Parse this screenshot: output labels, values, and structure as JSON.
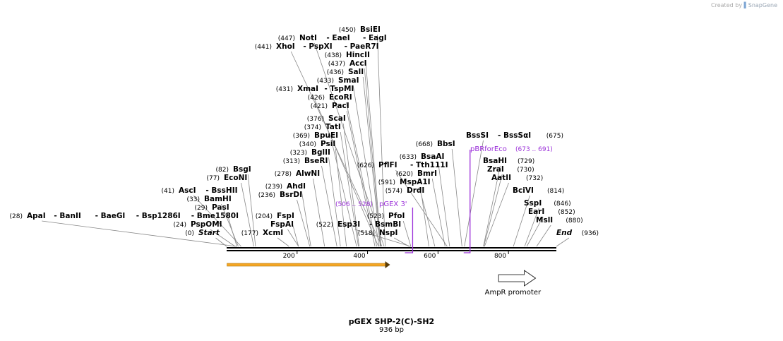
{
  "credit": {
    "prefix": "Created by",
    "brand": "SnapGene"
  },
  "map": {
    "name": "pGEX SHP-2(C)-SH2",
    "length_label": "936 bp",
    "total_bp": 936
  },
  "colors": {
    "primer": "#9b30d9",
    "feature": "#f5a623",
    "line": "#000000",
    "leader": "#888888"
  },
  "sites": [
    {
      "pos": 450,
      "label": "(450)",
      "names": [
        "BsiEI"
      ]
    },
    {
      "pos": 447,
      "label": "(447)",
      "names": [
        "NotI",
        "- EaeI",
        "- EagI"
      ]
    },
    {
      "pos": 441,
      "label": "(441)",
      "names": [
        "XhoI",
        "- PspXI",
        "- PaeR7I"
      ]
    },
    {
      "pos": 438,
      "label": "(438)",
      "names": [
        "HincII"
      ]
    },
    {
      "pos": 437,
      "label": "(437)",
      "names": [
        "AccI"
      ]
    },
    {
      "pos": 436,
      "label": "(436)",
      "names": [
        "SalI"
      ]
    },
    {
      "pos": 433,
      "label": "(433)",
      "names": [
        "SmaI"
      ]
    },
    {
      "pos": 431,
      "label": "(431)",
      "names": [
        "XmaI",
        "- TspMI"
      ]
    },
    {
      "pos": 426,
      "label": "(426)",
      "names": [
        "EcoRI"
      ]
    },
    {
      "pos": 421,
      "label": "(421)",
      "names": [
        "PacI"
      ]
    },
    {
      "pos": 376,
      "label": "(376)",
      "names": [
        "ScaI"
      ]
    },
    {
      "pos": 374,
      "label": "(374)",
      "names": [
        "TatI"
      ]
    },
    {
      "pos": 369,
      "label": "(369)",
      "names": [
        "BpuEI"
      ]
    },
    {
      "pos": 340,
      "label": "(340)",
      "names": [
        "PsiI"
      ]
    },
    {
      "pos": 323,
      "label": "(323)",
      "names": [
        "BglII"
      ]
    },
    {
      "pos": 313,
      "label": "(313)",
      "names": [
        "BseRI"
      ]
    },
    {
      "pos": 278,
      "label": "(278)",
      "names": [
        "AlwNI"
      ]
    },
    {
      "pos": 239,
      "label": "(239)",
      "names": [
        "AhdI"
      ]
    },
    {
      "pos": 236,
      "label": "(236)",
      "names": [
        "BsrDI"
      ]
    },
    {
      "pos": 204,
      "label": "(204)",
      "names": [
        "FspI"
      ]
    },
    {
      "pos": 204,
      "label": "",
      "names": [
        "FspAI"
      ]
    },
    {
      "pos": 177,
      "label": "(177)",
      "names": [
        "XcmI"
      ]
    },
    {
      "pos": 82,
      "label": "(82)",
      "names": [
        "BsgI"
      ]
    },
    {
      "pos": 77,
      "label": "(77)",
      "names": [
        "EcoNI"
      ]
    },
    {
      "pos": 41,
      "label": "(41)",
      "names": [
        "AscI",
        "- BssHII"
      ]
    },
    {
      "pos": 33,
      "label": "(33)",
      "names": [
        "BamHI"
      ]
    },
    {
      "pos": 29,
      "label": "(29)",
      "names": [
        "PasI"
      ]
    },
    {
      "pos": 28,
      "label": "(28)",
      "names": [
        "ApaI",
        "- BanII",
        "- BaeGI",
        "- Bsp1286I",
        "- Bme1580I"
      ]
    },
    {
      "pos": 24,
      "label": "(24)",
      "names": [
        "PspOMI"
      ]
    },
    {
      "pos": 0,
      "label": "(0)",
      "names": [
        "Start"
      ],
      "italic": true
    },
    {
      "pos": 522,
      "label": "(522)",
      "names": [
        "Esp3I",
        "- BsmBI"
      ]
    },
    {
      "pos": 518,
      "label": "(518)",
      "names": [
        "NspI"
      ]
    },
    {
      "pos": 523,
      "label": "(523)",
      "names": [
        "PfoI"
      ]
    },
    {
      "pos": 574,
      "label": "(574)",
      "names": [
        "DrdI"
      ]
    },
    {
      "pos": 591,
      "label": "(591)",
      "names": [
        "MspA1I"
      ]
    },
    {
      "pos": 620,
      "label": "(620)",
      "names": [
        "BmrI"
      ]
    },
    {
      "pos": 626,
      "label": "(626)",
      "names": [
        "PflFI",
        "- Tth111I"
      ]
    },
    {
      "pos": 633,
      "label": "(633)",
      "names": [
        "BsaAI"
      ]
    },
    {
      "pos": 668,
      "label": "(668)",
      "names": [
        "BbsI"
      ]
    },
    {
      "pos": 675,
      "label": "(675)",
      "names": [
        "BssSI",
        "- BssSαI"
      ]
    },
    {
      "pos": 729,
      "label": "(729)",
      "names": [
        "BsaHI"
      ]
    },
    {
      "pos": 730,
      "label": "(730)",
      "names": [
        "ZraI"
      ]
    },
    {
      "pos": 732,
      "label": "(732)",
      "names": [
        "AatII"
      ]
    },
    {
      "pos": 814,
      "label": "(814)",
      "names": [
        "BciVI"
      ]
    },
    {
      "pos": 846,
      "label": "(846)",
      "names": [
        "SspI"
      ]
    },
    {
      "pos": 852,
      "label": "(852)",
      "names": [
        "EarI"
      ]
    },
    {
      "pos": 880,
      "label": "(880)",
      "names": [
        "MslI"
      ]
    },
    {
      "pos": 936,
      "label": "(936)",
      "names": [
        "End"
      ],
      "italic": true
    }
  ],
  "primers": [
    {
      "name": "pGEX 3'",
      "range": "(506 .. 528)",
      "start": 506,
      "end": 528,
      "direction": "reverse"
    },
    {
      "name": "pBRforEco",
      "range": "(673 .. 691)",
      "start": 673,
      "end": 691,
      "direction": "reverse"
    }
  ],
  "ticks": [
    200,
    400,
    600,
    800
  ],
  "features": [
    {
      "name": "",
      "start": 1,
      "end": 464,
      "type": "cds",
      "direction": "forward"
    },
    {
      "name": "AmpR promoter",
      "start": 772,
      "end": 877,
      "type": "promoter",
      "direction": "forward"
    }
  ]
}
